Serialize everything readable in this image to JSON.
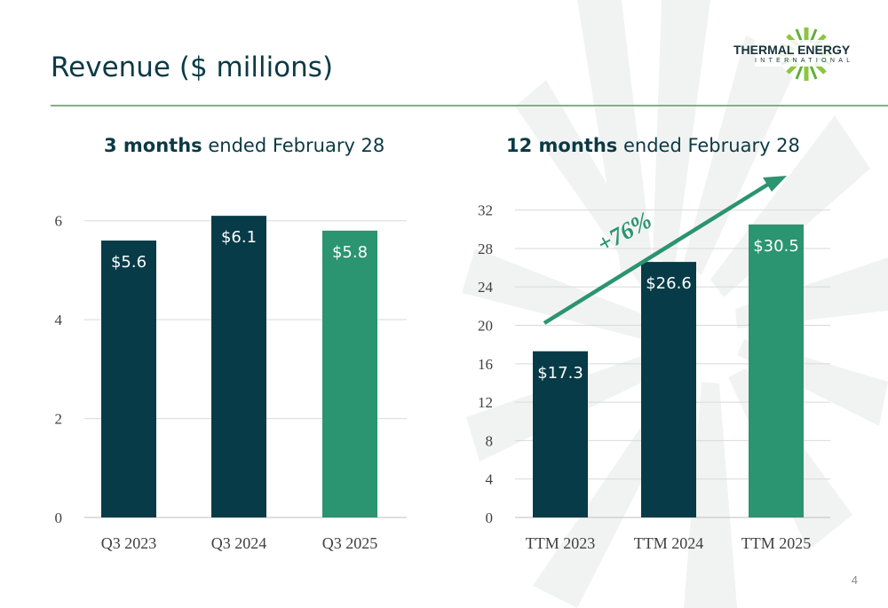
{
  "slide": {
    "title": "Revenue ($ millions)",
    "page_number": "4",
    "logo": {
      "name": "THERMAL ENERGY",
      "sub": "INTERNATIONAL"
    }
  },
  "colors": {
    "dark_bar": "#063b47",
    "green_bar": "#2b9470",
    "title_text": "#0b3a45",
    "rule": "#7fb27f",
    "grid": "#d9d9d9"
  },
  "chart_data": [
    {
      "type": "bar",
      "title_bold": "3 months",
      "title_rest": " ended February 28",
      "categories": [
        "Q3 2023",
        "Q3 2024",
        "Q3 2025"
      ],
      "values": [
        5.6,
        6.1,
        5.8
      ],
      "labels": [
        "$5.6",
        "$6.1",
        "$5.8"
      ],
      "bar_colors": [
        "#063b47",
        "#063b47",
        "#2b9470"
      ],
      "ylim": [
        0,
        7
      ],
      "yticks": [
        0,
        2,
        4,
        6
      ],
      "grid": true
    },
    {
      "type": "bar",
      "title_bold": "12 months",
      "title_rest": " ended February 28",
      "categories": [
        "TTM 2023",
        "TTM 2024",
        "TTM 2025"
      ],
      "values": [
        17.3,
        26.6,
        30.5
      ],
      "labels": [
        "$17.3",
        "$26.6",
        "$30.5"
      ],
      "bar_colors": [
        "#063b47",
        "#063b47",
        "#2b9470"
      ],
      "ylim": [
        0,
        34
      ],
      "yticks": [
        0,
        4,
        8,
        12,
        16,
        20,
        24,
        28,
        32
      ],
      "grid": true,
      "annotation": {
        "text": "+76%",
        "color": "#2b9470"
      }
    }
  ]
}
